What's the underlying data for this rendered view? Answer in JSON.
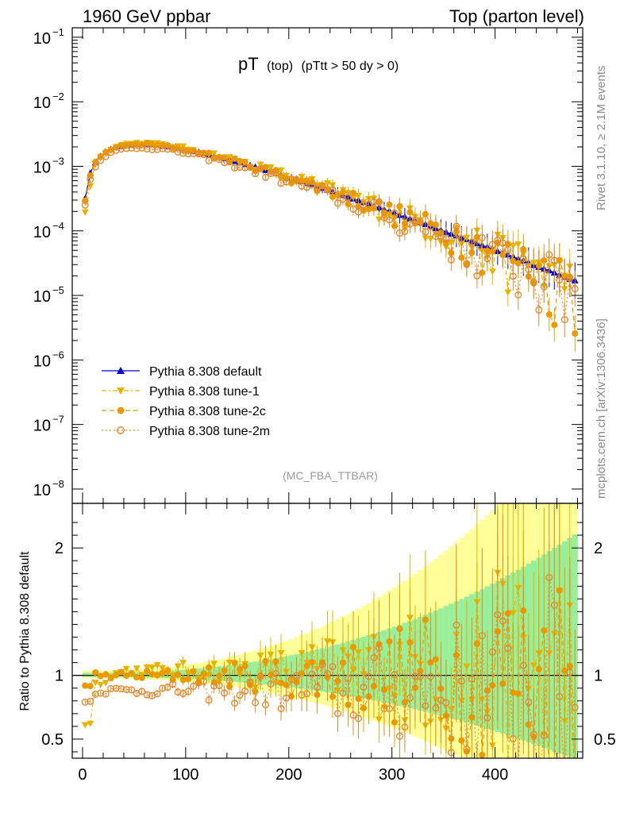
{
  "chart_data": {
    "type": "line",
    "header_left": "1960 GeV ppbar",
    "header_right": "Top (parton level)",
    "title_main": "pT",
    "title_sub1": "(top)",
    "title_sub2": "(pTtt > 50 dy > 0)",
    "watermark": "(MC_FBA_TTBAR)",
    "side_rivet": "Rivet 3.1.10, ≥ 2.1M events",
    "side_mcplots": "mcplots.cern.ch [arXiv:1306.3436]",
    "ratio_ylabel": "Ratio to Pythia 8.308 default",
    "xlim": [
      -10,
      485
    ],
    "ylim": [
      6e-09,
      0.14
    ],
    "yscale": "log",
    "ratio_ylim": [
      0.35,
      2.35
    ],
    "x_ticks": [
      "0",
      "100",
      "200",
      "300",
      "400"
    ],
    "y_ticks": [
      {
        "mant": "10",
        "exp": "−1"
      },
      {
        "mant": "10",
        "exp": "−2"
      },
      {
        "mant": "10",
        "exp": "−3"
      },
      {
        "mant": "10",
        "exp": "−4"
      },
      {
        "mant": "10",
        "exp": "−5"
      },
      {
        "mant": "10",
        "exp": "−6"
      },
      {
        "mant": "10",
        "exp": "−7"
      },
      {
        "mant": "10",
        "exp": "−8"
      }
    ],
    "ratio_ticks": [
      "0.5",
      "1",
      "2"
    ],
    "legend_position": "lower-left",
    "series": [
      {
        "name": "Pythia 8.308 default",
        "color": "#0000cc",
        "marker": "triangle-up",
        "dash": "solid",
        "ratio_scale": 1.0,
        "ratio_amp": 0.0
      },
      {
        "name": "Pythia 8.308 tune-1",
        "color": "#e6b400",
        "marker": "triangle-down",
        "dash": "6,3,2,3",
        "ratio_scale": 1.04,
        "ratio_amp": 0.55
      },
      {
        "name": "Pythia 8.308 tune-2c",
        "color": "#e89a00",
        "marker": "circle",
        "dash": "6,4",
        "ratio_scale": 1.0,
        "ratio_amp": 0.5
      },
      {
        "name": "Pythia 8.308 tune-2m",
        "color": "#e08a30",
        "marker": "open-circle",
        "dash": "2,3",
        "ratio_scale": 0.88,
        "ratio_amp": 0.5
      }
    ]
  }
}
